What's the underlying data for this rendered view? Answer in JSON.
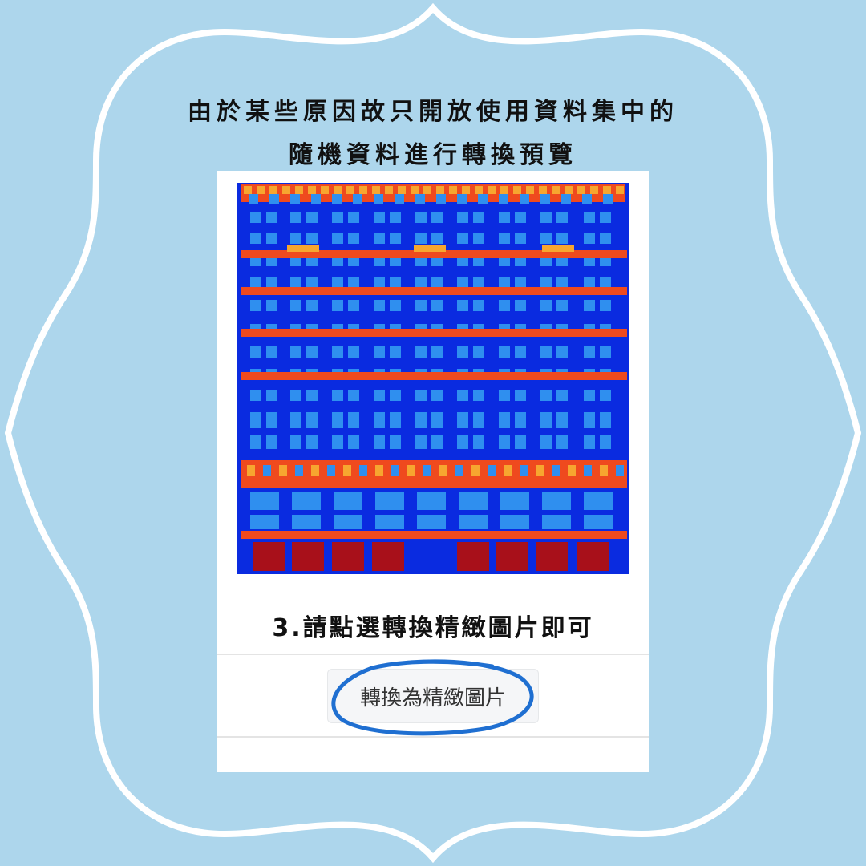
{
  "heading": {
    "line_1": "由於某些原因故只開放使用資料集中的",
    "line_2": "隨機資料進行轉換預覽"
  },
  "preview": {
    "description_icon": "heatmap-preview-image"
  },
  "instruction": {
    "text": "3.請點選轉換精緻圖片即可"
  },
  "button": {
    "label": "轉換為精緻圖片"
  },
  "colors": {
    "background": "#add6ec",
    "frame_stroke": "#ffffff",
    "panel": "#ffffff",
    "highlight_ring": "#1f6fd1",
    "heat_low": "#0a2be0",
    "heat_mid": "#2f8fef",
    "heat_hot": "#ef4a1e",
    "heat_warm": "#f7a62f",
    "heat_max": "#a8101a"
  }
}
